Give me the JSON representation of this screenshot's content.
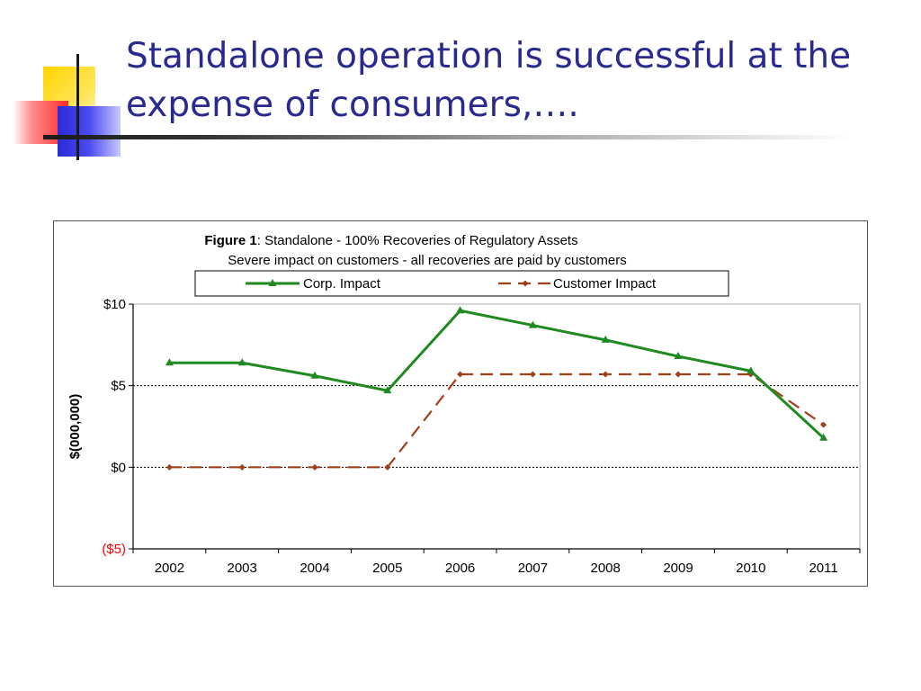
{
  "slide": {
    "title": "Standalone operation is successful at the expense of consumers,…."
  },
  "chart_data": {
    "type": "line",
    "title_bold": "Figure 1",
    "title_rest": ": Standalone - 100% Recoveries of Regulatory Assets",
    "subtitle": "Severe impact on customers - all recoveries are paid by customers",
    "xlabel": "",
    "ylabel": "$(000,000)",
    "categories": [
      "2002",
      "2003",
      "2004",
      "2005",
      "2006",
      "2007",
      "2008",
      "2009",
      "2010",
      "2011"
    ],
    "ylim": [
      -5,
      10
    ],
    "yticks": [
      {
        "value": 10,
        "label": "$10",
        "color": "#000000"
      },
      {
        "value": 5,
        "label": "$5",
        "color": "#000000"
      },
      {
        "value": 0,
        "label": "$0",
        "color": "#000000"
      },
      {
        "value": -5,
        "label": "($5)",
        "color": "#ff0000"
      }
    ],
    "gridlines": [
      5,
      0
    ],
    "legend_position": "top",
    "series": [
      {
        "name": "Corp. Impact",
        "color": "#1f8a1f",
        "style": "solid",
        "marker": "triangle",
        "values": [
          6.4,
          6.4,
          5.6,
          4.7,
          9.6,
          8.7,
          7.8,
          6.8,
          5.9,
          1.8
        ]
      },
      {
        "name": "Customer Impact",
        "color": "#a0401a",
        "style": "dashed",
        "marker": "diamond",
        "values": [
          0,
          0,
          0,
          0,
          5.7,
          5.7,
          5.7,
          5.7,
          5.7,
          2.6
        ]
      }
    ]
  }
}
